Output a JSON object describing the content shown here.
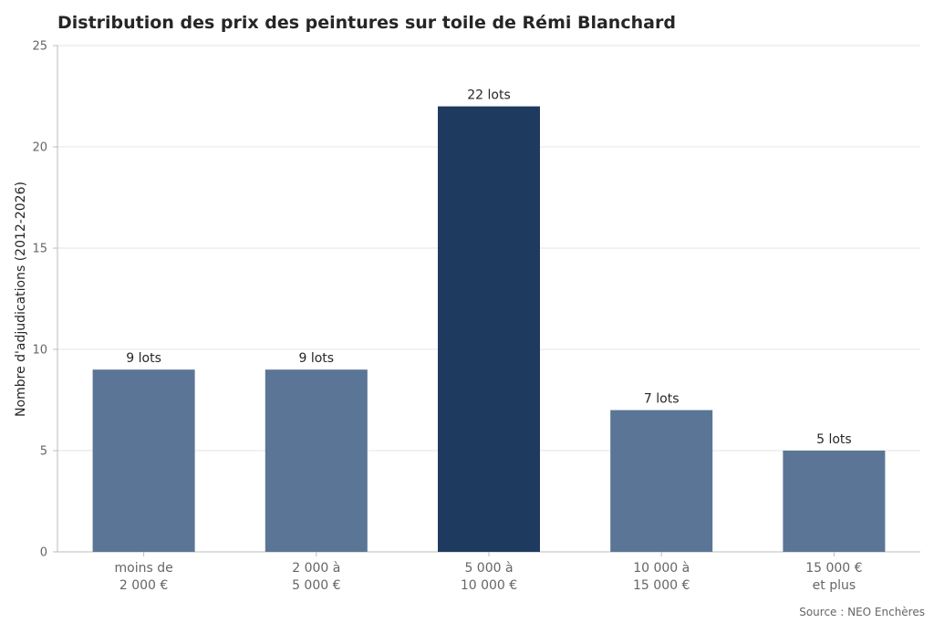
{
  "chart_data": {
    "type": "bar",
    "title": "Distribution des prix des peintures sur toile de Rémi Blanchard",
    "xlabel": "",
    "ylabel": "Nombre d'adjudications (2012-2026)",
    "ylim": [
      0,
      25
    ],
    "yticks": [
      0,
      5,
      10,
      15,
      20,
      25
    ],
    "grid": true,
    "categories": [
      [
        "moins de",
        "2 000 €"
      ],
      [
        "2 000 à",
        "5 000 €"
      ],
      [
        "5 000 à",
        "10 000 €"
      ],
      [
        "10 000 à",
        "15 000 €"
      ],
      [
        "15 000 €",
        "et plus"
      ]
    ],
    "values": [
      9,
      9,
      22,
      7,
      5
    ],
    "data_labels": [
      "9 lots",
      "9 lots",
      "22 lots",
      "7 lots",
      "5 lots"
    ],
    "highlight_index": 2,
    "colors": {
      "bar": "#5b7596",
      "highlight": "#1f3a5f",
      "grid": "#e5e5e5",
      "axis": "#bbbbbb"
    },
    "source": "Source : NEO Enchères"
  }
}
